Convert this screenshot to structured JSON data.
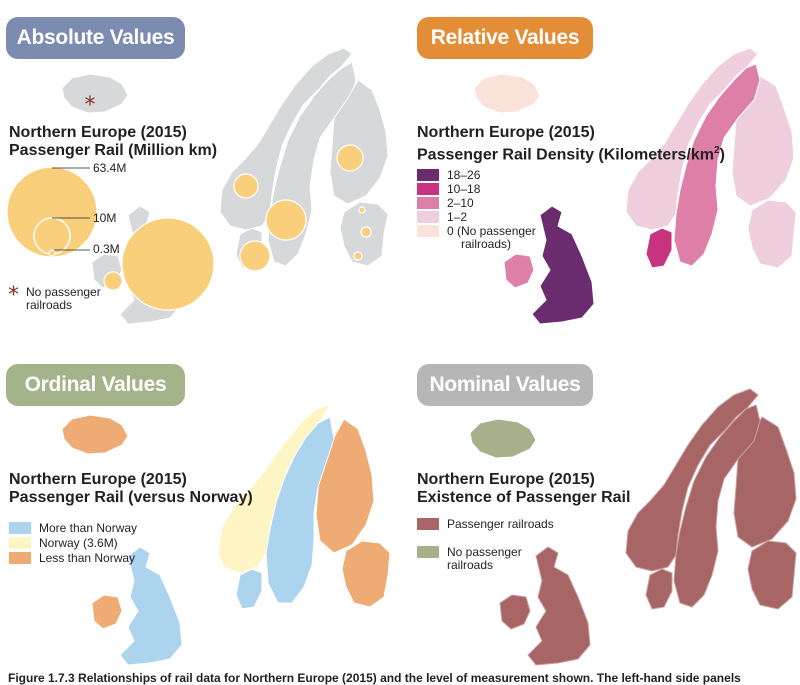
{
  "colors": {
    "land_gray": "#d7d8d9",
    "border_gray": "#ffffff",
    "circle_fill": "#f9cf7c",
    "circle_stroke": "#ffffff",
    "absolute_pill": "#7c8bb0",
    "relative_pill": "#e38d37",
    "ordinal_pill": "#a3b48a",
    "nominal_pill": "#b6b6b6",
    "density_18_26": "#6a2c6e",
    "density_10_18": "#c8337f",
    "density_2_10": "#dd7fa6",
    "density_1_2": "#efcfdd",
    "density_0": "#f9e2d9",
    "ordinal_more": "#acd4ef",
    "ordinal_norway": "#fdf5c4",
    "ordinal_less": "#eeab73",
    "nominal_rail": "#a86565",
    "nominal_norail": "#a6b08a",
    "star": "#8b2a2a"
  },
  "panels": {
    "absolute": {
      "pill": "Absolute Values",
      "title_line1": "Northern Europe (2015)",
      "title_line2": "Passenger Rail (Million km)",
      "size_legend": [
        "63.4M",
        "10M",
        "0.3M"
      ],
      "no_rail_line1": "No passenger",
      "no_rail_line2": "railroads",
      "star_icon": "asterisk-star-icon"
    },
    "relative": {
      "pill": "Relative Values",
      "title_line1": "Northern Europe (2015)",
      "title_line2": "Passenger Rail Density (Kilometers/km",
      "title_sup": "2",
      "title_close": ")",
      "legend": [
        {
          "label": "18–26"
        },
        {
          "label": "10–18"
        },
        {
          "label": "2–10"
        },
        {
          "label": "1–2"
        },
        {
          "label": "0 (No passenger",
          "label2": "railroads)"
        }
      ]
    },
    "ordinal": {
      "pill": "Ordinal Values",
      "title_line1": "Northern Europe (2015)",
      "title_line2": "Passenger Rail (versus Norway)",
      "legend": [
        {
          "label": "More than Norway"
        },
        {
          "label": "Norway (3.6M)"
        },
        {
          "label": "Less than Norway"
        }
      ]
    },
    "nominal": {
      "pill": "Nominal Values",
      "title_line1": "Northern Europe (2015)",
      "title_line2": "Existence of Passenger Rail",
      "legend": [
        {
          "label": "Passenger railroads"
        },
        {
          "label": "No passenger",
          "label2": "railroads"
        }
      ]
    }
  },
  "caption": "Figure 1.7.3  Relationships of rail data for Northern Europe (2015) and the level of measurement shown. The left-hand side panels"
}
